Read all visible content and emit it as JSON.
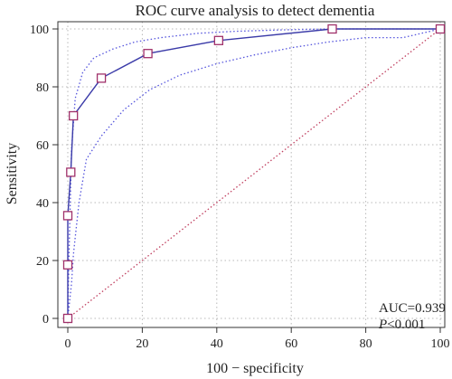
{
  "chart_data": {
    "type": "line",
    "title": "ROC curve analysis to detect dementia",
    "xlabel": "100 − specificity",
    "ylabel": "Sensitivity",
    "xlim": [
      0,
      100
    ],
    "ylim": [
      0,
      100
    ],
    "xticks": [
      "0",
      "20",
      "40",
      "60",
      "80",
      "100"
    ],
    "yticks": [
      "0",
      "20",
      "40",
      "60",
      "80",
      "100"
    ],
    "grid": true,
    "series": [
      {
        "role": "roc",
        "color": "#3a3aa8",
        "marker_color": "#a0306a",
        "x": [
          0,
          0,
          0,
          0.8,
          1.5,
          9,
          21.5,
          40.5,
          71,
          100
        ],
        "y": [
          0,
          18.5,
          35.5,
          50.5,
          70,
          83,
          91.5,
          96,
          100,
          100
        ]
      },
      {
        "role": "ci-upper",
        "color": "#5555dd",
        "x": [
          0,
          0.3,
          1,
          2,
          4,
          7,
          12,
          18,
          25,
          35,
          45,
          58,
          70,
          85,
          100
        ],
        "y": [
          0,
          20,
          58,
          76,
          85,
          90,
          93,
          95.5,
          97,
          98.5,
          99.2,
          99.7,
          100,
          100,
          100
        ]
      },
      {
        "role": "ci-lower",
        "color": "#5555dd",
        "x": [
          0,
          1,
          1.5,
          2,
          3,
          5,
          9,
          15,
          22,
          30,
          40,
          50,
          60,
          70,
          80,
          90,
          100
        ],
        "y": [
          0,
          12,
          22,
          28,
          40,
          55,
          63,
          72,
          79,
          84,
          88,
          91,
          93.5,
          95.5,
          97,
          97,
          100
        ]
      },
      {
        "role": "reference",
        "color": "#c04060",
        "x": [
          0,
          100
        ],
        "y": [
          0,
          100
        ]
      }
    ],
    "annotations": {
      "auc": "AUC=0.939",
      "p_italic": "P",
      "p_rest": "<0.001"
    }
  }
}
